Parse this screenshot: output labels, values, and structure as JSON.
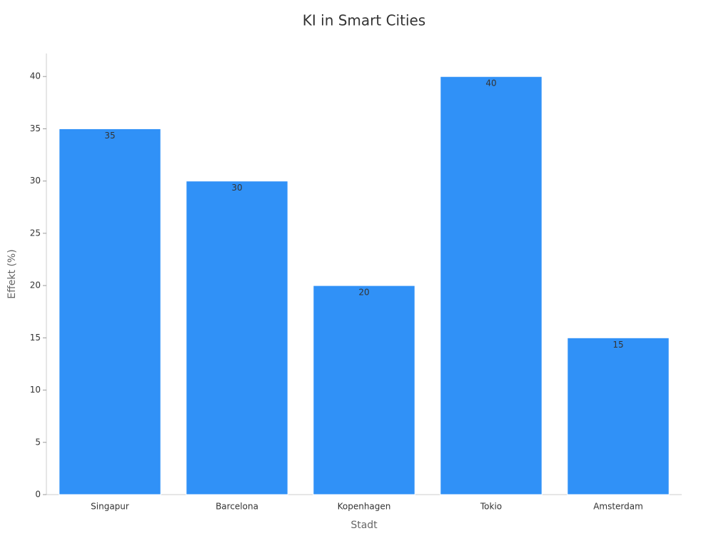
{
  "chart_data": {
    "type": "bar",
    "title": "KI in Smart Cities",
    "x_label": "Stadt",
    "y_label": "Effekt (%)",
    "categories": [
      "Singapur",
      "Barcelona",
      "Kopenhagen",
      "Tokio",
      "Amsterdam"
    ],
    "values": [
      35,
      30,
      20,
      40,
      15
    ],
    "color": "#3091f7",
    "ylim": [
      0,
      42.2
    ],
    "yticks": [
      0,
      5,
      10,
      15,
      20,
      25,
      30,
      35,
      40
    ],
    "grid": false
  }
}
